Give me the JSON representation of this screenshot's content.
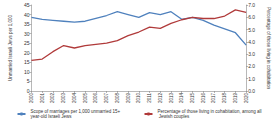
{
  "chart_data": {
    "type": "line",
    "categories": [
      "2000",
      "2001",
      "2002",
      "2003",
      "2004",
      "2005",
      "2006",
      "2007",
      "2008",
      "2009",
      "2010",
      "2011",
      "2012",
      "2013",
      "2014",
      "2015",
      "2016",
      "2017",
      "2018",
      "2019",
      "2020"
    ],
    "series": [
      {
        "name": "Scope of marriages per 1,000 unmarried 15+ year-old Israeli Jews",
        "color": "#4f81bd",
        "values": [
          38.5,
          37.5,
          37,
          36.5,
          36,
          36.5,
          38,
          39.5,
          41.5,
          40,
          38.5,
          41,
          40,
          41.5,
          37.5,
          38.5,
          37,
          34.5,
          32.5,
          30.5,
          24
        ]
      },
      {
        "name": "Percentage of those living in cohabitation, among all Jewish couples",
        "color": "#b03a3a",
        "axis": "y2",
        "values": [
          2.5,
          2.6,
          3.2,
          3.7,
          3.5,
          3.7,
          3.8,
          3.9,
          4.1,
          4.5,
          4.8,
          5.2,
          5.1,
          5.5,
          5.8,
          6.0,
          5.9,
          5.9,
          6.1,
          6.6,
          6.4
        ]
      }
    ],
    "y_label": "Unmarried Israeli Jews per 1,000",
    "y2_label": "Percentage of those living in cohabitation",
    "ylim": [
      0,
      45
    ],
    "yticks": [
      0,
      5,
      10,
      15,
      20,
      25,
      30,
      35,
      40,
      45
    ],
    "y2lim": [
      0,
      7
    ],
    "y2ticks": [
      {
        "value": 0,
        "label": "0.0"
      },
      {
        "value": 1,
        "label": "1.0"
      },
      {
        "value": 2,
        "label": "2.0"
      },
      {
        "value": 3,
        "label": "3.0"
      },
      {
        "value": 4,
        "label": "4.0"
      },
      {
        "value": 5,
        "label": "5.0"
      },
      {
        "value": 6,
        "label": "6.0"
      },
      {
        "value": 7,
        "label": "7.0"
      }
    ],
    "legend": "bottom",
    "grid": false
  }
}
